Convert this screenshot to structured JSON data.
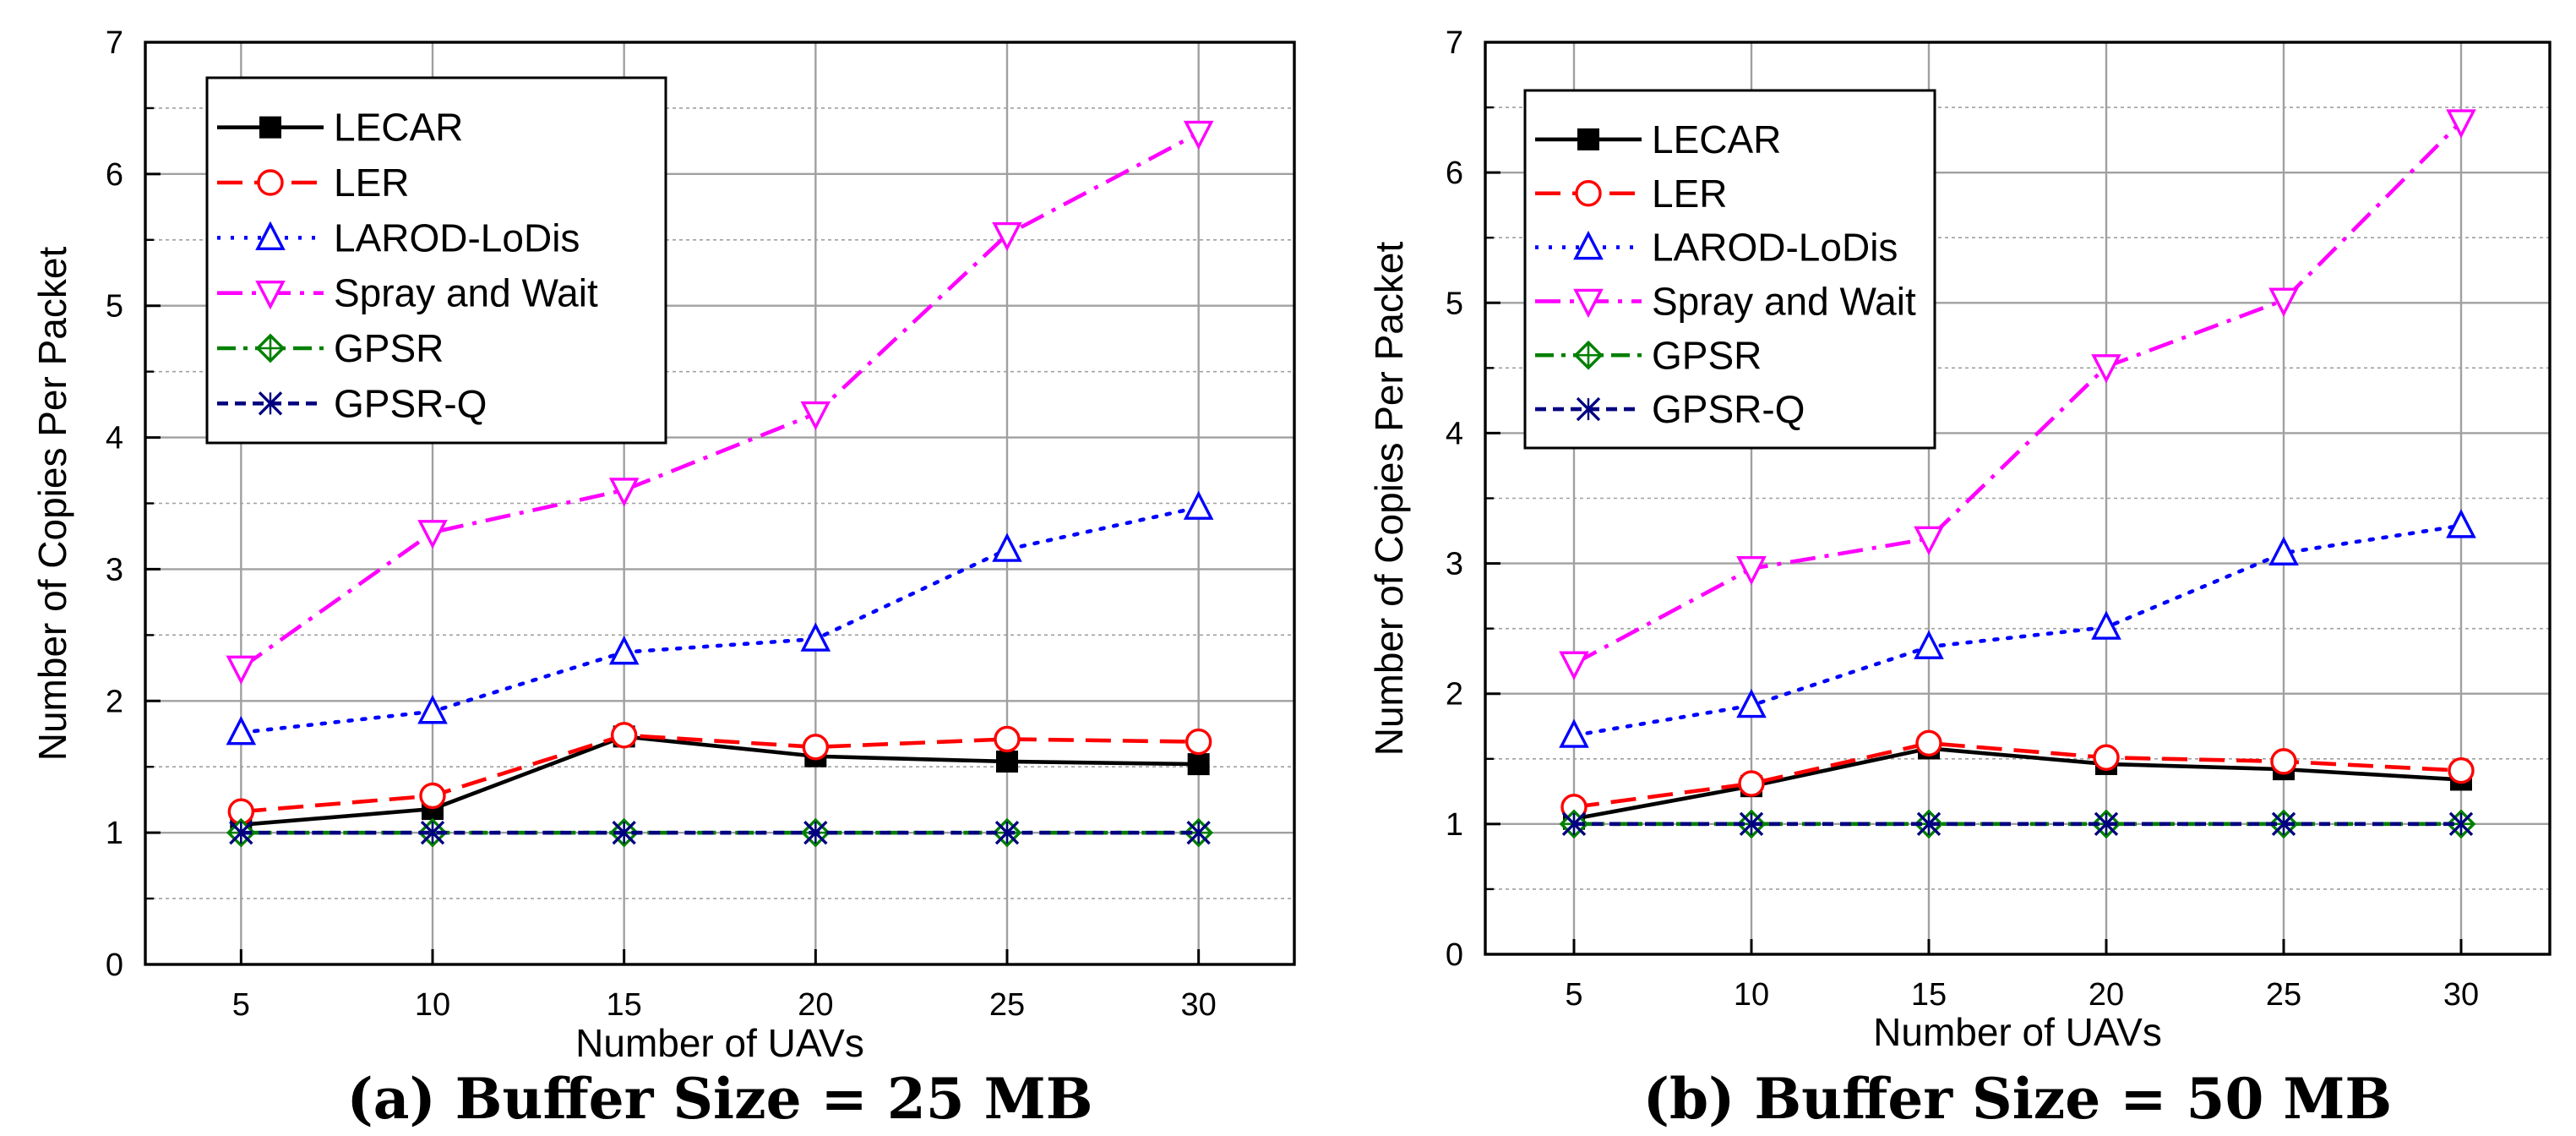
{
  "figure": {
    "colors": {
      "LECAR": "#000000",
      "LER": "#ff0000",
      "LAROD-LoDis": "#0000ff",
      "Spray and Wait": "#ff00ff",
      "GPSR": "#008000",
      "GPSR-Q": "#000080",
      "grid": "#a0a0a0",
      "axis": "#000000"
    }
  },
  "chart_data": [
    {
      "type": "line",
      "caption": "(a) Buffer Size = 25 MB",
      "xlabel": "Number of UAVs",
      "ylabel": "Number of Copies Per Packet",
      "xlim": [
        2.5,
        32.5
      ],
      "ylim": [
        0,
        7
      ],
      "x": [
        5,
        10,
        15,
        20,
        25,
        30
      ],
      "x_ticks": [
        "5",
        "10",
        "15",
        "20",
        "25",
        "30"
      ],
      "y_ticks": [
        "0",
        "1",
        "2",
        "3",
        "4",
        "5",
        "6",
        "7"
      ],
      "grid": true,
      "legend_position": "top-left",
      "series": [
        {
          "name": "LECAR",
          "values": [
            1.06,
            1.18,
            1.73,
            1.58,
            1.54,
            1.52
          ]
        },
        {
          "name": "LER",
          "values": [
            1.16,
            1.28,
            1.74,
            1.65,
            1.71,
            1.69
          ]
        },
        {
          "name": "LAROD-LoDis",
          "values": [
            1.76,
            1.92,
            2.37,
            2.47,
            3.15,
            3.47
          ]
        },
        {
          "name": "Spray and Wait",
          "values": [
            2.25,
            3.28,
            3.6,
            4.18,
            5.54,
            6.31
          ]
        },
        {
          "name": "GPSR",
          "values": [
            1.0,
            1.0,
            1.0,
            1.0,
            1.0,
            1.0
          ]
        },
        {
          "name": "GPSR-Q",
          "values": [
            1.0,
            1.0,
            1.0,
            1.0,
            1.0,
            1.0
          ]
        }
      ]
    },
    {
      "type": "line",
      "caption": "(b) Buffer Size = 50 MB",
      "xlabel": "Number of UAVs",
      "ylabel": "Number of Copies Per Packet",
      "xlim": [
        2.5,
        32.5
      ],
      "ylim": [
        0,
        7
      ],
      "x": [
        5,
        10,
        15,
        20,
        25,
        30
      ],
      "x_ticks": [
        "5",
        "10",
        "15",
        "20",
        "25",
        "30"
      ],
      "y_ticks": [
        "0",
        "1",
        "2",
        "3",
        "4",
        "5",
        "6",
        "7"
      ],
      "grid": true,
      "legend_position": "top-left",
      "series": [
        {
          "name": "LECAR",
          "values": [
            1.04,
            1.29,
            1.58,
            1.46,
            1.42,
            1.34
          ]
        },
        {
          "name": "LER",
          "values": [
            1.13,
            1.31,
            1.62,
            1.51,
            1.48,
            1.41
          ]
        },
        {
          "name": "LAROD-LoDis",
          "values": [
            1.68,
            1.91,
            2.36,
            2.51,
            3.08,
            3.29
          ]
        },
        {
          "name": "Spray and Wait",
          "values": [
            2.23,
            2.96,
            3.19,
            4.51,
            5.02,
            6.39
          ]
        },
        {
          "name": "GPSR",
          "values": [
            1.0,
            1.0,
            1.0,
            1.0,
            1.0,
            1.0
          ]
        },
        {
          "name": "GPSR-Q",
          "values": [
            1.0,
            1.0,
            1.0,
            1.0,
            1.0,
            1.0
          ]
        }
      ]
    }
  ]
}
